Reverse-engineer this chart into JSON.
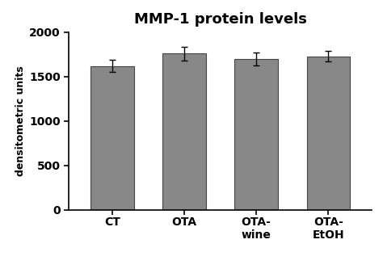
{
  "title": "MMP-1 protein levels",
  "ylabel": "densitometric units",
  "categories": [
    "CT",
    "OTA",
    "OTA-\nwine",
    "OTA-\nEtOH"
  ],
  "values": [
    1620,
    1760,
    1700,
    1730
  ],
  "errors": [
    70,
    80,
    70,
    60
  ],
  "bar_color": "#888888",
  "bar_edge_color": "#444444",
  "ylim": [
    0,
    2000
  ],
  "yticks": [
    0,
    500,
    1000,
    1500,
    2000
  ],
  "background_color": "#ffffff",
  "title_fontsize": 13,
  "ylabel_fontsize": 9,
  "tick_fontsize": 10,
  "bar_width": 0.6
}
